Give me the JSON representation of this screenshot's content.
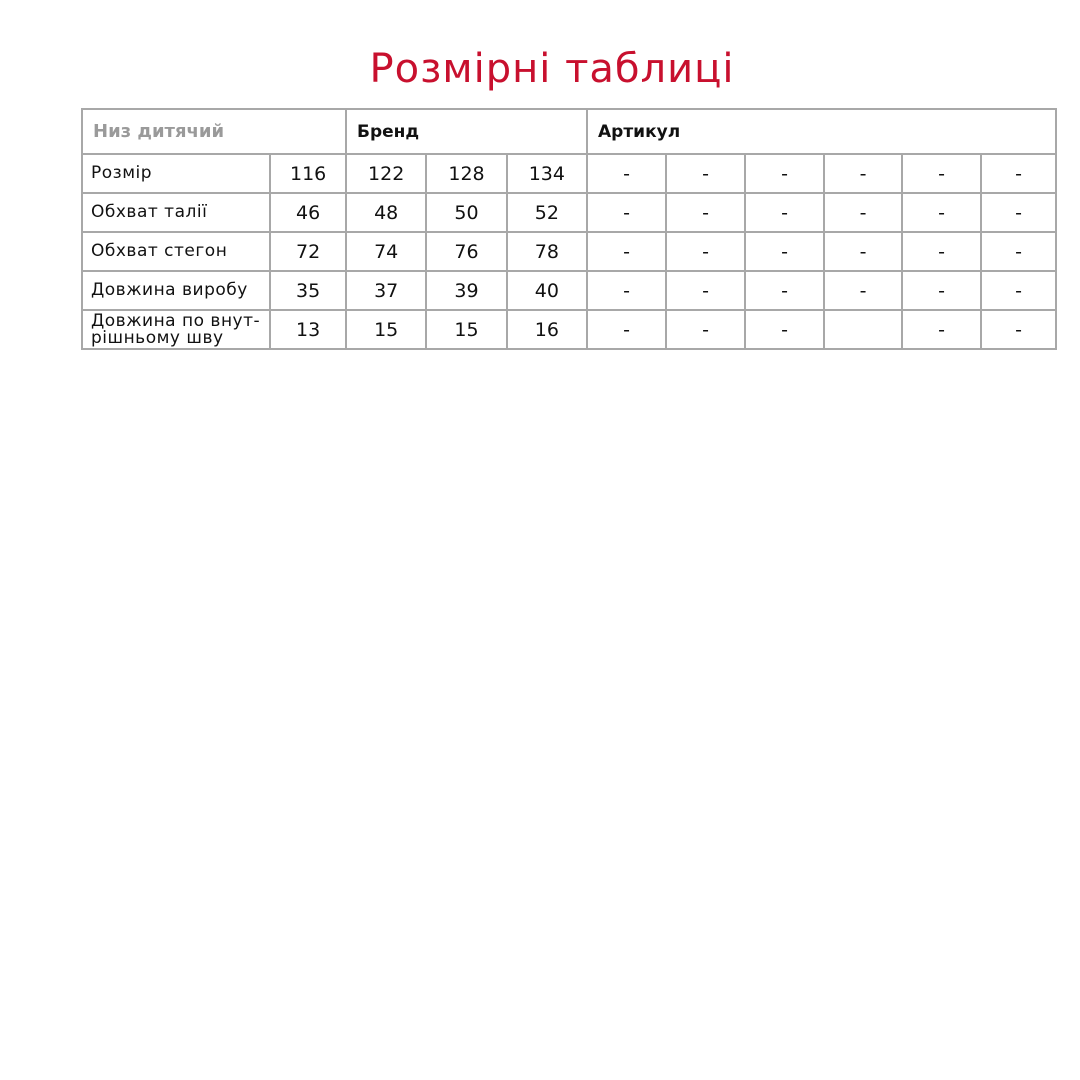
{
  "title": "Розмірні таблиці",
  "table": {
    "category": "Низ дитячий",
    "brand_label": "Бренд",
    "article_label": "Артикул",
    "rows": [
      {
        "label": "Розмір",
        "values": [
          "116",
          "122",
          "128",
          "134",
          "-",
          "-",
          "-",
          "-",
          "-",
          "-"
        ]
      },
      {
        "label": "Обхват талії",
        "values": [
          "46",
          "48",
          "50",
          "52",
          "-",
          "-",
          "-",
          "-",
          "-",
          "-"
        ]
      },
      {
        "label": "Обхват стегон",
        "values": [
          "72",
          "74",
          "76",
          "78",
          "-",
          "-",
          "-",
          "-",
          "-",
          "-"
        ]
      },
      {
        "label": "Довжина виробу",
        "values": [
          "35",
          "37",
          "39",
          "40",
          "-",
          "-",
          "-",
          "-",
          "-",
          "-"
        ]
      },
      {
        "label": "Довжина по внут-рішньому шву",
        "values": [
          "13",
          "15",
          "15",
          "16",
          "-",
          "-",
          "-",
          "",
          "-",
          "-"
        ]
      }
    ]
  },
  "colors": {
    "title": "#c8102e",
    "border": "#a8a8a8",
    "logo": "#e3e3e3",
    "silhouette": "#707070",
    "measure": "#c8102e"
  },
  "logo": "min"
}
